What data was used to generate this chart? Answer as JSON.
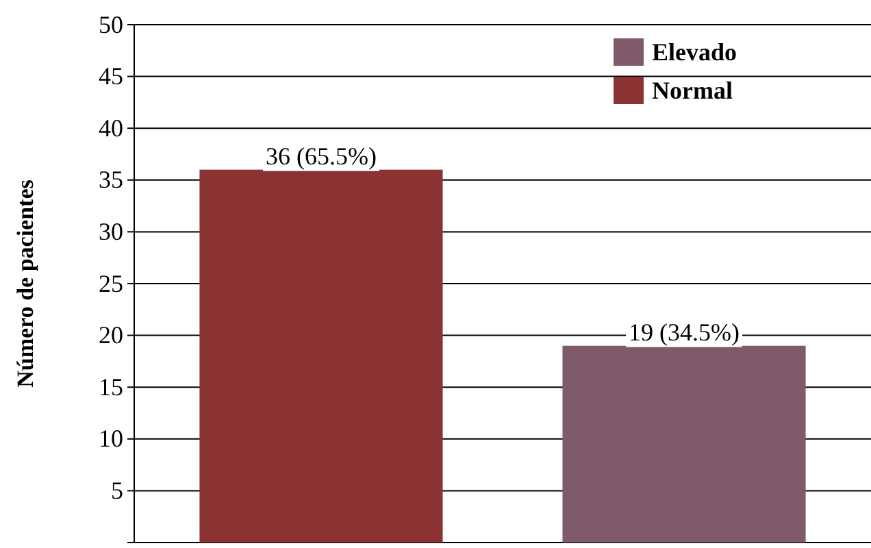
{
  "chart_data": {
    "type": "bar",
    "ylabel": "Número de pacientes",
    "categories": [
      null,
      null
    ],
    "series": [
      {
        "name": "Elevado",
        "color": "#7e5a6a",
        "values": [
          null,
          19
        ],
        "value_labels": [
          null,
          "19 (34.5%)"
        ]
      },
      {
        "name": "Normal",
        "color": "#8b3232",
        "values": [
          36,
          null
        ],
        "value_labels": [
          "36 (65.5%)",
          null
        ]
      }
    ],
    "ylim": [
      0,
      50
    ],
    "yticks": [
      {
        "value": 0,
        "label": null
      },
      5,
      10,
      15,
      20,
      25,
      30,
      35,
      40,
      45,
      50
    ],
    "grid": "y",
    "legend": "top right"
  }
}
